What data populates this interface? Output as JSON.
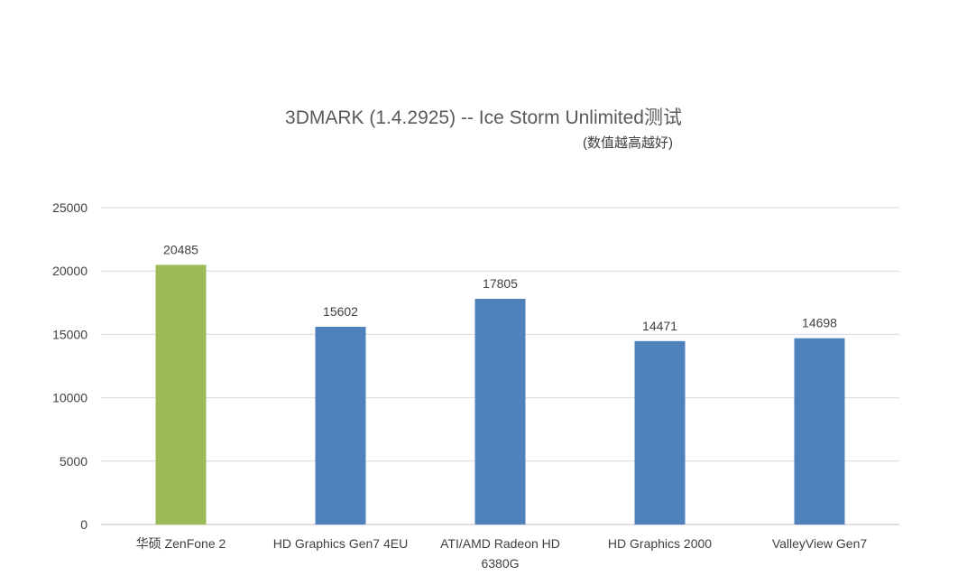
{
  "chart_data": {
    "type": "bar",
    "title": "3DMARK (1.4.2925) -- Ice Storm Unlimited测试",
    "subtitle": "(数值越高越好)",
    "categories": [
      "华硕 ZenFone 2",
      "HD Graphics Gen7 4EU",
      "ATI/AMD Radeon HD 6380G",
      "HD Graphics 2000",
      "ValleyView Gen7"
    ],
    "values": [
      20485,
      15602,
      17805,
      14471,
      14698
    ],
    "bar_colors": [
      "#9BBB59",
      "#4F81BD",
      "#4F81BD",
      "#4F81BD",
      "#4F81BD"
    ],
    "ylim": [
      0,
      25000
    ],
    "yticks": [
      0,
      5000,
      10000,
      15000,
      20000,
      25000
    ],
    "grid": true,
    "xlabel": "",
    "ylabel": ""
  }
}
